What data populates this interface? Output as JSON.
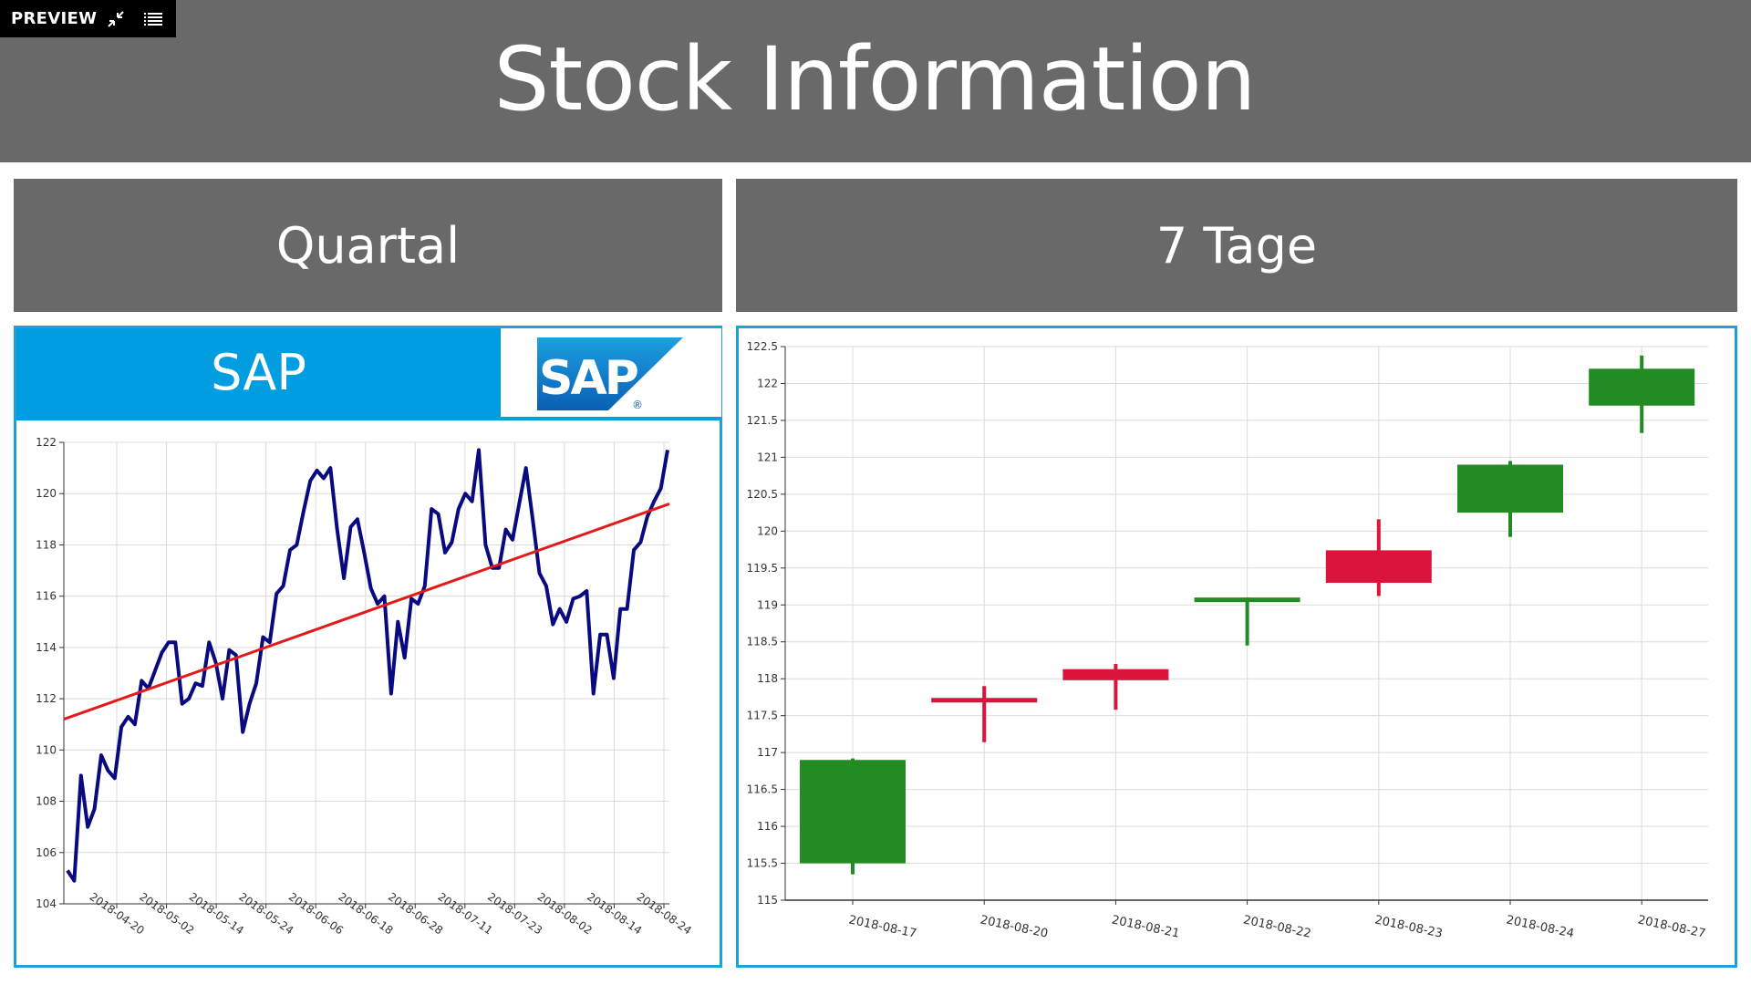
{
  "preview": {
    "label": "PREVIEW",
    "icons": [
      "collapse-icon",
      "list-icon"
    ]
  },
  "header": {
    "title": "Stock Information"
  },
  "sections": {
    "left": "Quartal",
    "right": "7 Tage"
  },
  "sap_panel": {
    "name": "SAP",
    "logo_text": "SAP",
    "logo_mark": "®"
  },
  "colors": {
    "header_bg": "#696969",
    "panel_border": "#1ea0dc",
    "sap_blue": "#009de0",
    "price_line": "#0a0a80",
    "trend_line": "#e31a1a",
    "candle_up": "#228b22",
    "candle_down": "#dc143c"
  },
  "chart_data": [
    {
      "type": "line",
      "title": "",
      "xlabel": "",
      "ylabel": "",
      "ylim": [
        104,
        122
      ],
      "yticks": [
        "104",
        "106",
        "108",
        "110",
        "112",
        "114",
        "116",
        "118",
        "120",
        "122"
      ],
      "xticks": [
        "2018-04-20",
        "2018-05-02",
        "2018-05-14",
        "2018-05-24",
        "2018-06-06",
        "2018-06-18",
        "2018-06-28",
        "2018-07-11",
        "2018-07-23",
        "2018-08-02",
        "2018-08-14",
        "2018-08-24"
      ],
      "grid": true,
      "series": [
        {
          "role": "price",
          "values": [
            105.3,
            104.9,
            109.0,
            107.0,
            107.7,
            109.8,
            109.2,
            108.9,
            110.9,
            111.3,
            111.0,
            112.7,
            112.4,
            113.1,
            113.8,
            114.2,
            114.2,
            111.8,
            112.0,
            112.6,
            112.5,
            114.2,
            113.4,
            112.0,
            113.9,
            113.7,
            110.7,
            111.8,
            112.6,
            114.4,
            114.2,
            116.1,
            116.4,
            117.8,
            118.0,
            119.3,
            120.5,
            120.9,
            120.6,
            121.0,
            118.6,
            116.7,
            118.7,
            119.0,
            117.7,
            116.3,
            115.7,
            116.0,
            112.2,
            115.0,
            113.6,
            115.9,
            115.7,
            116.4,
            119.4,
            119.2,
            117.7,
            118.1,
            119.4,
            120.0,
            119.7,
            121.7,
            118.0,
            117.1,
            117.1,
            118.6,
            118.2,
            119.6,
            121.0,
            119.0,
            116.9,
            116.4,
            114.9,
            115.5,
            115.0,
            115.9,
            116.0,
            116.2,
            112.2,
            114.5,
            114.5,
            112.8,
            115.5,
            115.5,
            117.8,
            118.1,
            119.1,
            119.7,
            120.2,
            121.7
          ]
        },
        {
          "role": "trend",
          "values": [
            111.2,
            119.6
          ]
        }
      ]
    },
    {
      "type": "candlestick",
      "title": "",
      "xlabel": "",
      "ylabel": "",
      "ylim": [
        115,
        122.5
      ],
      "yticks": [
        "115",
        "115.5",
        "116",
        "116.5",
        "117",
        "117.5",
        "118",
        "118.5",
        "119",
        "119.5",
        "120",
        "120.5",
        "121",
        "121.5",
        "122",
        "122.5"
      ],
      "grid": true,
      "categories": [
        "2018-08-17",
        "2018-08-20",
        "2018-08-21",
        "2018-08-22",
        "2018-08-23",
        "2018-08-24",
        "2018-08-27"
      ],
      "candles": [
        {
          "open": 115.5,
          "close": 116.9,
          "high": 116.92,
          "low": 115.35
        },
        {
          "open": 117.74,
          "close": 117.68,
          "high": 117.9,
          "low": 117.14
        },
        {
          "open": 118.13,
          "close": 117.98,
          "high": 118.2,
          "low": 117.58
        },
        {
          "open": 119.04,
          "close": 119.1,
          "high": 119.1,
          "low": 118.45
        },
        {
          "open": 119.74,
          "close": 119.3,
          "high": 120.16,
          "low": 119.12
        },
        {
          "open": 120.25,
          "close": 120.9,
          "high": 120.95,
          "low": 119.92
        },
        {
          "open": 121.7,
          "close": 122.2,
          "high": 122.38,
          "low": 121.33
        }
      ]
    }
  ]
}
